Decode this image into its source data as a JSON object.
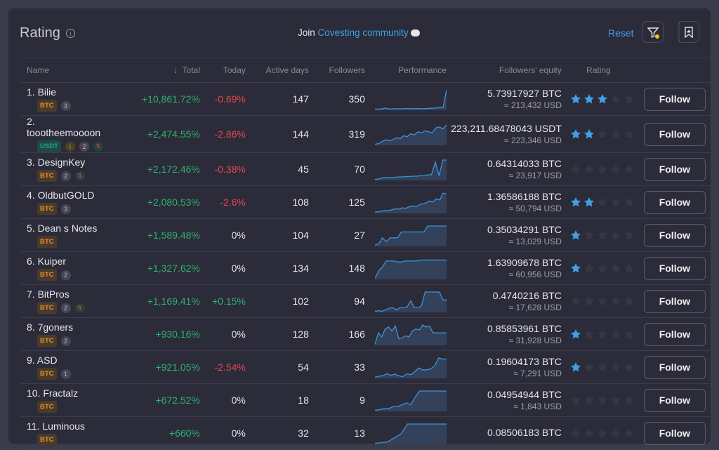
{
  "header": {
    "title": "Rating",
    "join_prefix": "Join",
    "join_link": "Covesting community",
    "reset": "Reset"
  },
  "columns": {
    "name": "Name",
    "total": "Total",
    "today": "Today",
    "active_days": "Active days",
    "followers": "Followers",
    "performance": "Performance",
    "equity": "Followers' equity",
    "rating": "Rating"
  },
  "colors": {
    "accent": "#3fa0e6",
    "positive": "#2fb36b",
    "negative": "#e5484d",
    "star_on": "#3fa0e6",
    "star_off": "#363644",
    "btc": "#e8922e",
    "usdt": "#26a38c"
  },
  "follow_label": "Follow",
  "rows": [
    {
      "name": "1. Bilie",
      "currency": "BTC",
      "level": "3",
      "gold": false,
      "swap": false,
      "total": "+10,861.72%",
      "today": "-0.69%",
      "today_sign": "neg",
      "days": "147",
      "followers": "350",
      "equity": "5.73917927 BTC",
      "usd": "≈ 213,432 USD",
      "stars": 3,
      "perf": [
        2,
        2,
        3,
        8,
        3,
        3,
        4,
        4,
        4,
        5,
        5,
        4,
        5,
        5,
        4,
        5,
        6,
        7,
        8,
        12,
        10,
        100
      ]
    },
    {
      "name": "2. toootheemoooon",
      "currency": "USDT",
      "level": "2",
      "gold": true,
      "swap": true,
      "total": "+2,474.55%",
      "today": "-2.86%",
      "today_sign": "neg",
      "days": "144",
      "followers": "319",
      "equity": "223,211.68478043 USDT",
      "usd": "≈ 223,346 USD",
      "stars": 2,
      "perf": [
        2,
        5,
        15,
        25,
        20,
        25,
        35,
        30,
        45,
        40,
        55,
        50,
        65,
        60,
        70,
        65,
        60,
        85,
        90,
        80,
        100
      ]
    },
    {
      "name": "3. DesignKey",
      "currency": "BTC",
      "level": "2",
      "gold": false,
      "swap": true,
      "total": "+2,172.46%",
      "today": "-0.38%",
      "today_sign": "neg",
      "days": "45",
      "followers": "70",
      "equity": "0.64314033 BTC",
      "usd": "≈ 23,917 USD",
      "stars": 0,
      "perf": [
        2,
        3,
        10,
        10,
        12,
        12,
        14,
        14,
        16,
        16,
        18,
        18,
        20,
        20,
        25,
        25,
        90,
        20,
        100,
        100
      ]
    },
    {
      "name": "4. OldbutGOLD",
      "currency": "BTC",
      "level": "3",
      "gold": false,
      "swap": false,
      "total": "+2,080.53%",
      "today": "-2.6%",
      "today_sign": "neg",
      "days": "108",
      "followers": "125",
      "equity": "1.36586188 BTC",
      "usd": "≈ 50,794 USD",
      "stars": 2,
      "perf": [
        2,
        5,
        8,
        12,
        10,
        15,
        20,
        18,
        25,
        22,
        30,
        35,
        30,
        40,
        45,
        50,
        60,
        55,
        70,
        65,
        100,
        95
      ]
    },
    {
      "name": "5. Dean s Notes",
      "currency": "BTC",
      "level": "",
      "gold": false,
      "swap": false,
      "total": "+1,589.48%",
      "today": "0%",
      "today_sign": "zero",
      "days": "104",
      "followers": "27",
      "equity": "0.35034291 BTC",
      "usd": "≈ 13,029 USD",
      "stars": 1,
      "perf": [
        2,
        10,
        40,
        20,
        40,
        40,
        40,
        70,
        70,
        70,
        70,
        70,
        70,
        70,
        100,
        100,
        100,
        100,
        100,
        100
      ]
    },
    {
      "name": "6. Kuiper",
      "currency": "BTC",
      "level": "2",
      "gold": false,
      "swap": false,
      "total": "+1,327.62%",
      "today": "0%",
      "today_sign": "zero",
      "days": "134",
      "followers": "148",
      "equity": "1.63909678 BTC",
      "usd": "≈ 60,956 USD",
      "stars": 1,
      "perf": [
        2,
        40,
        60,
        90,
        90,
        90,
        85,
        85,
        90,
        90,
        90,
        90,
        95,
        95,
        95,
        95,
        95,
        95,
        95,
        95
      ]
    },
    {
      "name": "7. BitPros",
      "currency": "BTC",
      "level": "2",
      "gold": false,
      "swap": true,
      "total": "+1,169.41%",
      "today": "+0.15%",
      "today_sign": "pos",
      "days": "102",
      "followers": "94",
      "equity": "0.4740216 BTC",
      "usd": "≈ 17,628 USD",
      "stars": 0,
      "perf": [
        2,
        5,
        2,
        10,
        18,
        20,
        10,
        20,
        20,
        25,
        55,
        20,
        20,
        30,
        100,
        100,
        100,
        100,
        100,
        60,
        60
      ]
    },
    {
      "name": "8. 7goners",
      "currency": "BTC",
      "level": "2",
      "gold": false,
      "swap": false,
      "total": "+930.16%",
      "today": "0%",
      "today_sign": "zero",
      "days": "128",
      "followers": "166",
      "equity": "0.85853961 BTC",
      "usd": "≈ 31,928 USD",
      "stars": 1,
      "perf": [
        2,
        60,
        40,
        80,
        90,
        70,
        95,
        30,
        35,
        45,
        40,
        70,
        80,
        75,
        100,
        90,
        95,
        60,
        60,
        60,
        60,
        60
      ]
    },
    {
      "name": "9. ASD",
      "currency": "BTC",
      "level": "1",
      "gold": false,
      "swap": false,
      "total": "+921.05%",
      "today": "-2.54%",
      "today_sign": "neg",
      "days": "54",
      "followers": "33",
      "equity": "0.19604173 BTC",
      "usd": "≈ 7,291 USD",
      "stars": 1,
      "perf": [
        2,
        8,
        10,
        20,
        12,
        18,
        10,
        5,
        20,
        15,
        30,
        50,
        40,
        40,
        45,
        60,
        100,
        95,
        95
      ]
    },
    {
      "name": "10. Fractalz",
      "currency": "BTC",
      "level": "",
      "gold": false,
      "swap": false,
      "total": "+672.52%",
      "today": "0%",
      "today_sign": "zero",
      "days": "18",
      "followers": "9",
      "equity": "0.04954944 BTC",
      "usd": "≈ 1,843 USD",
      "stars": 0,
      "perf": [
        2,
        5,
        10,
        10,
        20,
        20,
        30,
        40,
        30,
        70,
        100,
        100,
        100,
        100,
        100,
        100,
        100
      ]
    },
    {
      "name": "11. Luminous",
      "currency": "BTC",
      "level": "",
      "gold": false,
      "swap": false,
      "total": "+660%",
      "today": "0%",
      "today_sign": "zero",
      "days": "32",
      "followers": "13",
      "equity": "0.08506183 BTC",
      "usd": "",
      "stars": 0,
      "perf": [
        2,
        5,
        10,
        30,
        50,
        100,
        100,
        100,
        100,
        100,
        100,
        100
      ]
    }
  ]
}
